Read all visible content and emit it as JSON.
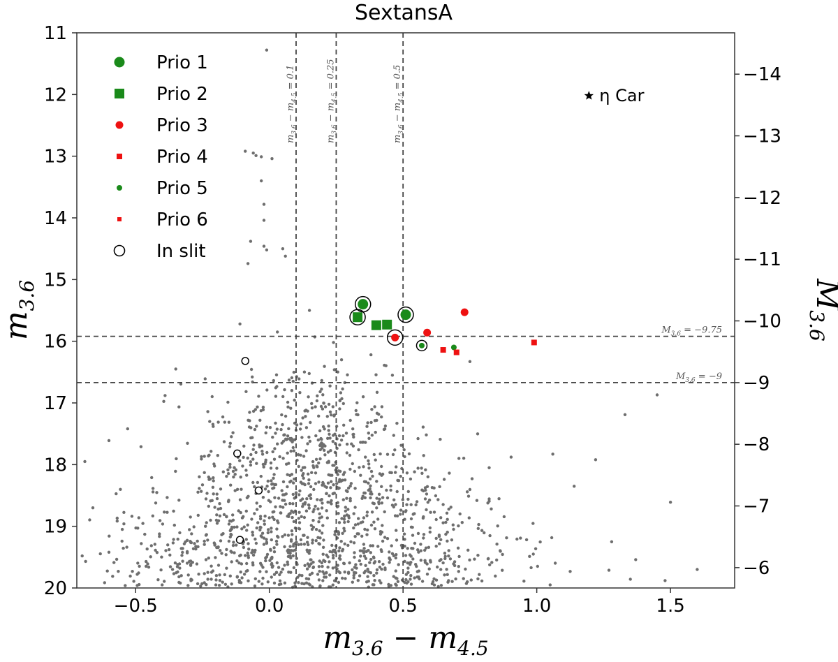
{
  "chart_data": {
    "type": "scatter",
    "title": "SextansA",
    "xlabel": {
      "base": "m",
      "sub1": "3.6",
      "op": " − m",
      "sub2": "4.5"
    },
    "ylabel": {
      "base": "m",
      "sub": "3.6"
    },
    "y2label": {
      "base": "M",
      "sub": "3.6"
    },
    "xlim": [
      -0.72,
      1.74
    ],
    "ylim": [
      20.0,
      11.0
    ],
    "distance_modulus": 25.67,
    "xticks": [
      -0.5,
      0.0,
      0.5,
      1.0,
      1.5
    ],
    "xtick_labels": [
      "−0.5",
      "0.0",
      "0.5",
      "1.0",
      "1.5"
    ],
    "yticks": [
      11,
      12,
      13,
      14,
      15,
      16,
      17,
      18,
      19,
      20
    ],
    "ytick_labels": [
      "11",
      "12",
      "13",
      "14",
      "15",
      "16",
      "17",
      "18",
      "19",
      "20"
    ],
    "y2ticks": [
      -14,
      -13,
      -12,
      -11,
      -10,
      -9,
      -8,
      -7,
      -6
    ],
    "y2tick_labels": [
      "−14",
      "−13",
      "−12",
      "−11",
      "−10",
      "−9",
      "−8",
      "−7",
      "−6"
    ],
    "vlines": [
      {
        "x": 0.1,
        "label_parts": [
          "m",
          "3.6",
          " − m",
          "4.5",
          " = 0.1"
        ]
      },
      {
        "x": 0.25,
        "label_parts": [
          "m",
          "3.6",
          " − m",
          "4.5",
          " = 0.25"
        ]
      },
      {
        "x": 0.5,
        "label_parts": [
          "m",
          "3.6",
          " − m",
          "4.5",
          " = 0.5"
        ]
      }
    ],
    "hlines": [
      {
        "M": -9.75,
        "label_parts": [
          "M",
          "3.6",
          " = −9.75"
        ]
      },
      {
        "M": -9.0,
        "label_parts": [
          "M",
          "3.6",
          " = −9"
        ]
      }
    ],
    "legend": {
      "placement": "upper-left",
      "entries": [
        {
          "label": "Prio 1",
          "marker": "circle",
          "color": "#1a8a1a",
          "size": "large"
        },
        {
          "label": "Prio 2",
          "marker": "square",
          "color": "#1a8a1a",
          "size": "large"
        },
        {
          "label": "Prio 3",
          "marker": "circle",
          "color": "#ee1111",
          "size": "medium"
        },
        {
          "label": "Prio 4",
          "marker": "square",
          "color": "#ee1111",
          "size": "medium"
        },
        {
          "label": "Prio 5",
          "marker": "circle",
          "color": "#1a8a1a",
          "size": "small"
        },
        {
          "label": "Prio 6",
          "marker": "square",
          "color": "#ee1111",
          "size": "small"
        },
        {
          "label": "In slit",
          "marker": "open-circle",
          "color": "#000000",
          "size": "large"
        }
      ]
    },
    "eta_car": {
      "x": 1.195,
      "y": 12.02,
      "label": "η Car"
    },
    "prio1": [
      [
        0.35,
        15.4
      ],
      [
        0.51,
        15.57
      ]
    ],
    "prio2": [
      [
        0.33,
        15.61
      ],
      [
        0.4,
        15.74
      ],
      [
        0.44,
        15.73
      ]
    ],
    "prio3": [
      [
        0.73,
        15.53
      ],
      [
        0.59,
        15.86
      ],
      [
        0.47,
        15.94
      ]
    ],
    "prio4": [
      [
        0.65,
        16.14
      ],
      [
        0.7,
        16.18
      ],
      [
        0.99,
        16.02
      ]
    ],
    "prio5": [
      [
        0.57,
        16.07
      ],
      [
        0.69,
        16.1
      ]
    ],
    "prio6": [],
    "in_slit": [
      [
        0.35,
        15.4
      ],
      [
        0.51,
        15.57
      ],
      [
        0.33,
        15.61
      ],
      [
        0.47,
        15.94
      ],
      [
        0.57,
        16.07
      ],
      [
        -0.09,
        16.32
      ],
      [
        -0.12,
        17.82
      ],
      [
        -0.04,
        18.42
      ],
      [
        -0.11,
        19.22
      ]
    ],
    "background": {
      "color": "#6e6e6e",
      "count": 1500,
      "distribution": "bulk near color 0.1–0.3, m 17–20, with sparse bright tail up to m 11.3",
      "points": [
        [
          -0.01,
          11.28
        ],
        [
          -0.09,
          12.92
        ],
        [
          -0.06,
          12.95
        ],
        [
          -0.05,
          12.99
        ],
        [
          -0.03,
          13.01
        ],
        [
          0.01,
          13.04
        ],
        [
          -0.03,
          13.4
        ],
        [
          -0.02,
          13.78
        ],
        [
          -0.02,
          14.04
        ],
        [
          0.05,
          14.5
        ],
        [
          -0.01,
          14.52
        ],
        [
          -0.02,
          14.46
        ],
        [
          -0.07,
          14.38
        ],
        [
          0.06,
          14.62
        ],
        [
          -0.08,
          14.74
        ],
        [
          -0.11,
          15.72
        ],
        [
          0.15,
          15.5
        ],
        [
          0.03,
          15.85
        ],
        [
          0.17,
          15.93
        ],
        [
          0.24,
          16.02
        ],
        [
          0.27,
          16.3
        ],
        [
          0.38,
          16.22
        ],
        [
          0.43,
          16.39
        ],
        [
          0.46,
          16.55
        ],
        [
          0.75,
          16.33
        ],
        [
          -0.35,
          16.45
        ],
        [
          -0.24,
          16.61
        ],
        [
          1.45,
          16.87
        ],
        [
          -0.39,
          16.88
        ],
        [
          -0.23,
          17.14
        ],
        [
          1.33,
          17.19
        ],
        [
          -0.53,
          17.42
        ],
        [
          -0.6,
          17.61
        ],
        [
          -0.48,
          17.71
        ],
        [
          1.06,
          17.83
        ],
        [
          1.22,
          17.92
        ],
        [
          -0.44,
          18.21
        ],
        [
          1.14,
          18.35
        ],
        [
          -0.69,
          17.95
        ],
        [
          -0.66,
          18.7
        ],
        [
          1.5,
          18.61
        ],
        [
          -0.55,
          19.05
        ],
        [
          1.28,
          19.25
        ],
        [
          1.37,
          19.54
        ],
        [
          -0.7,
          19.48
        ],
        [
          -0.6,
          19.42
        ],
        [
          1.48,
          19.88
        ],
        [
          1.6,
          19.7
        ],
        [
          -0.2,
          19.95
        ],
        [
          1.05,
          19.95
        ]
      ]
    }
  }
}
